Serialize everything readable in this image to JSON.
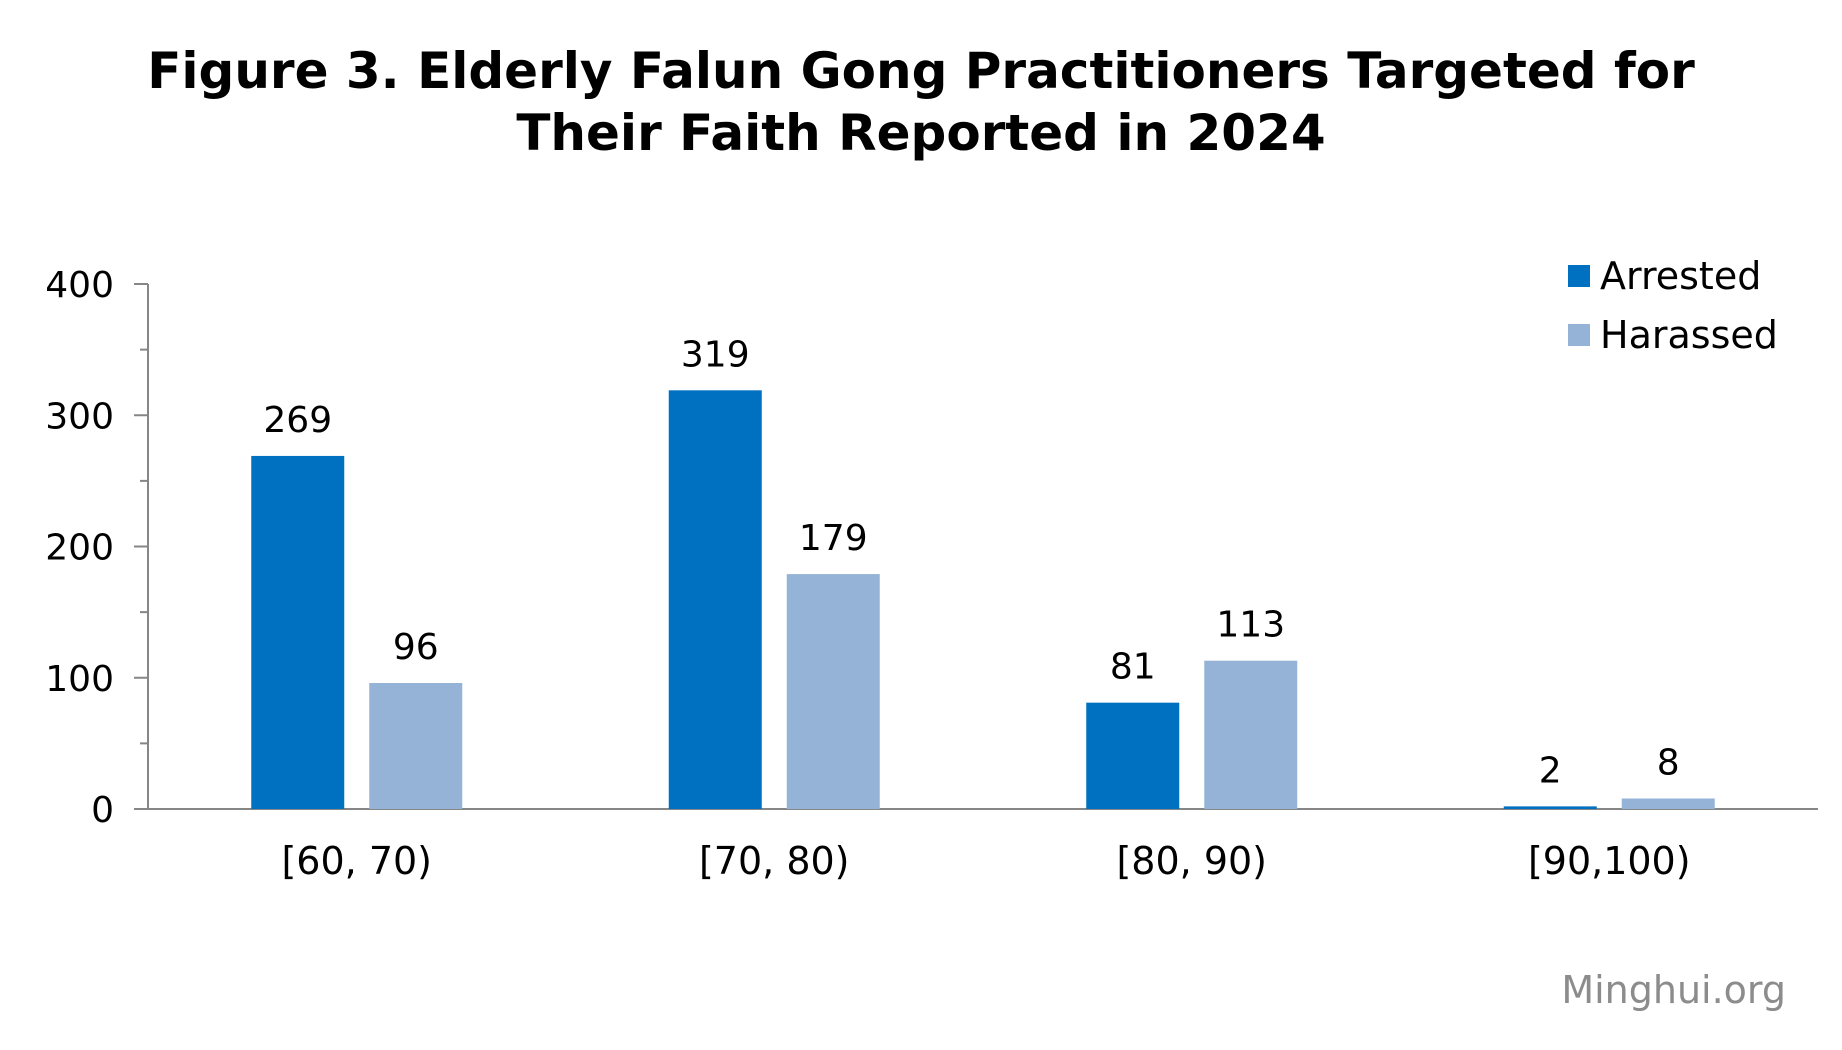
{
  "chart_data": {
    "type": "bar",
    "title_lines": [
      "Figure 3. Elderly Falun Gong Practitioners Targeted for",
      "Their Faith Reported in 2024"
    ],
    "categories": [
      "[60, 70)",
      "[70, 80)",
      "[80, 90)",
      "[90,100)"
    ],
    "series": [
      {
        "name": "Arrested",
        "values": [
          269,
          319,
          81,
          2
        ],
        "color": "#0070c0"
      },
      {
        "name": "Harassed",
        "values": [
          96,
          179,
          113,
          8
        ],
        "color": "#95b3d7"
      }
    ],
    "ylim": [
      0,
      400
    ],
    "yticks": [
      0,
      100,
      200,
      300,
      400
    ],
    "xlabel": "",
    "ylabel": "",
    "legend_position": "top-right",
    "grid": false,
    "data_labels": true
  },
  "watermark": "Minghui.org"
}
